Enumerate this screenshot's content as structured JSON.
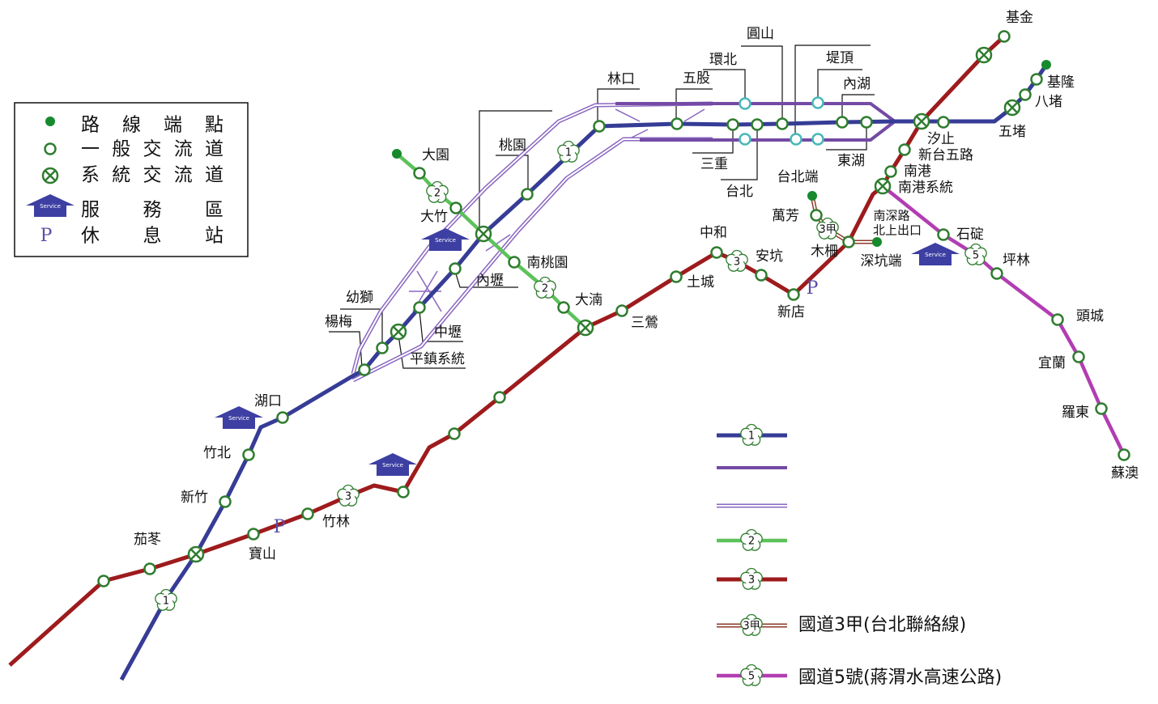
{
  "legend": {
    "items": [
      "路 線 端 點",
      "一 般 交 流 道",
      "系 統 交 流 道",
      "服 務 區",
      "休 息 站"
    ],
    "routes": [
      "國道3甲(台北聯絡線)",
      "國道5號(蔣渭水高速公路)"
    ]
  },
  "route_numbers": [
    "1",
    "2",
    "3",
    "3甲",
    "5"
  ],
  "service_icon_label": "Service",
  "rest_stop_symbol": "P",
  "stations": [
    "基金",
    "基隆",
    "八堵",
    "五堵",
    "汐止",
    "新台五路",
    "南港",
    "南港系統",
    "南深路",
    "北上出口",
    "石碇",
    "坪林",
    "頭城",
    "宜蘭",
    "羅東",
    "蘇澳",
    "圓山",
    "堤頂",
    "環北",
    "內湖",
    "五股",
    "林口",
    "三重",
    "台北",
    "東湖",
    "台北端",
    "萬芳",
    "木柵",
    "深坑端",
    "中和",
    "安坑",
    "土城",
    "新店",
    "三鶯",
    "大湳",
    "南桃園",
    "桃園",
    "大園",
    "大竹",
    "內壢",
    "中壢",
    "幼獅",
    "楊梅",
    "平鎮系統",
    "湖口",
    "竹北",
    "新竹",
    "茄苳",
    "寶山",
    "竹林"
  ]
}
